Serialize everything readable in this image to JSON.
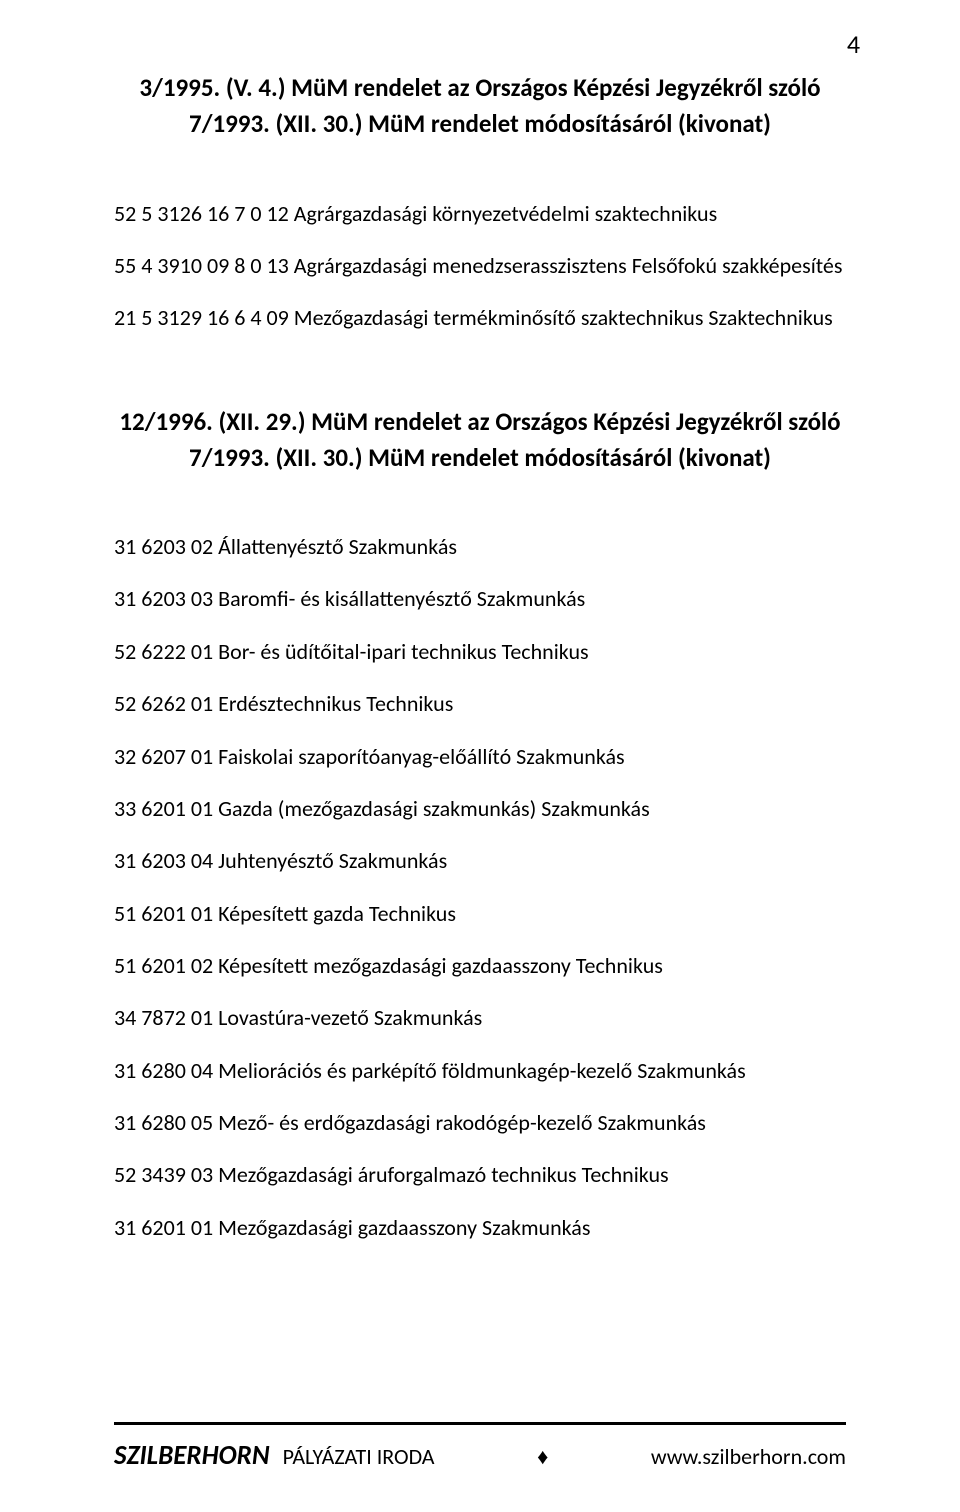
{
  "pageNumber": "4",
  "heading1": "3/1995. (V. 4.) MüM rendelet az Országos Képzési Jegyzékről szóló 7/1993. (XII. 30.) MüM rendelet módosításáról (kivonat)",
  "block1": [
    "52 5 3126 16 7 0 12 Agrárgazdasági környezetvédelmi szaktechnikus",
    "55 4 3910 09 8 0 13 Agrárgazdasági menedzserasszisztens Felsőfokú szakképesítés",
    "21 5 3129 16 6 4 09 Mezőgazdasági termékminősítő szaktechnikus Szaktechnikus"
  ],
  "heading2": "12/1996. (XII. 29.) MüM rendelet az Országos Képzési Jegyzékről szóló 7/1993. (XII. 30.) MüM rendelet módosításáról (kivonat)",
  "block2": [
    "31 6203 02 Állattenyésztő Szakmunkás",
    "31 6203 03 Baromfi- és kisállattenyésztő Szakmunkás",
    "52 6222 01 Bor- és üdítőital-ipari technikus Technikus",
    "52 6262 01 Erdésztechnikus Technikus",
    "32 6207 01 Faiskolai szaporítóanyag-előállító Szakmunkás",
    "33 6201 01 Gazda (mezőgazdasági szakmunkás) Szakmunkás",
    "31 6203 04 Juhtenyésztő Szakmunkás",
    "51 6201 01 Képesített gazda Technikus",
    "51 6201 02 Képesített mezőgazdasági gazdaasszony Technikus",
    "34 7872 01 Lovastúra-vezető Szakmunkás",
    "31 6280 04 Meliorációs és parképítő földmunkagép-kezelő Szakmunkás",
    "31 6280 05 Mező- és erdőgazdasági rakodógép-kezelő Szakmunkás",
    "52 3439 03 Mezőgazdasági áruforgalmazó technikus Technikus",
    "31 6201 01 Mezőgazdasági gazdaasszony Szakmunkás"
  ],
  "footer": {
    "brand": "SZILBERHORN",
    "label": "PÁLYÁZATI IRODA",
    "bullet": "♦",
    "url": "www.szilberhorn.com"
  }
}
